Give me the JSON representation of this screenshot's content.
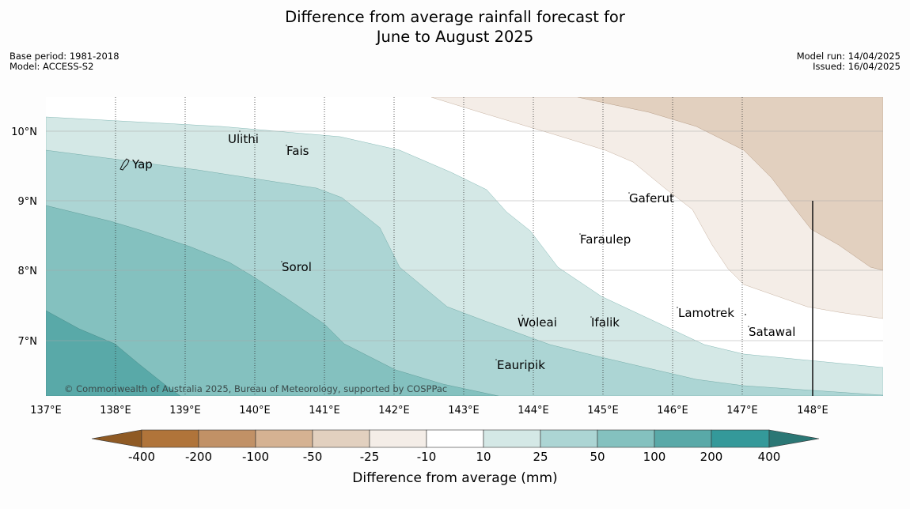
{
  "header": {
    "title_line1": "Difference from average rainfall forecast for",
    "title_line2": "June to August 2025",
    "base_period": "Base period: 1981-2018",
    "model": "Model: ACCESS-S2",
    "model_run": "Model run: 14/04/2025",
    "issued": "Issued: 16/04/2025"
  },
  "map": {
    "longitude_labels": [
      "137°E",
      "138°E",
      "139°E",
      "140°E",
      "141°E",
      "142°E",
      "143°E",
      "144°E",
      "145°E",
      "146°E",
      "147°E",
      "148°E"
    ],
    "latitude_labels": [
      "10°N",
      "9°N",
      "8°N",
      "7°N"
    ],
    "places": [
      "Ulithi",
      "Fais",
      "Yap",
      "Gaferut",
      "Faraulep",
      "Sorol",
      "Lamotrek",
      "Woleai",
      "Ifalik",
      "Satawal",
      "Eauripik"
    ],
    "copyright": "© Commonwealth of Australia 2025, Bureau of Meteorology, supported by COSPPac"
  },
  "colorbar": {
    "title": "Difference from average (mm)",
    "tick_labels": [
      "-400",
      "-200",
      "-100",
      "-50",
      "-25",
      "-10",
      "10",
      "25",
      "50",
      "100",
      "200",
      "400"
    ],
    "colors": {
      "below_-400": "#8f5a24",
      "-400_-200": "#b0743a",
      "-200_-100": "#c19166",
      "-100_-50": "#d5b292",
      "-50_-25": "#e2d0bf",
      "-25_-10": "#f4ede7",
      "-10_10": "#ffffff",
      "10_25": "#d4e8e6",
      "25_50": "#acd5d4",
      "50_100": "#84c1bf",
      "100_200": "#59a9a8",
      "200_400": "#34999a",
      "above_400": "#2b7775"
    }
  }
}
